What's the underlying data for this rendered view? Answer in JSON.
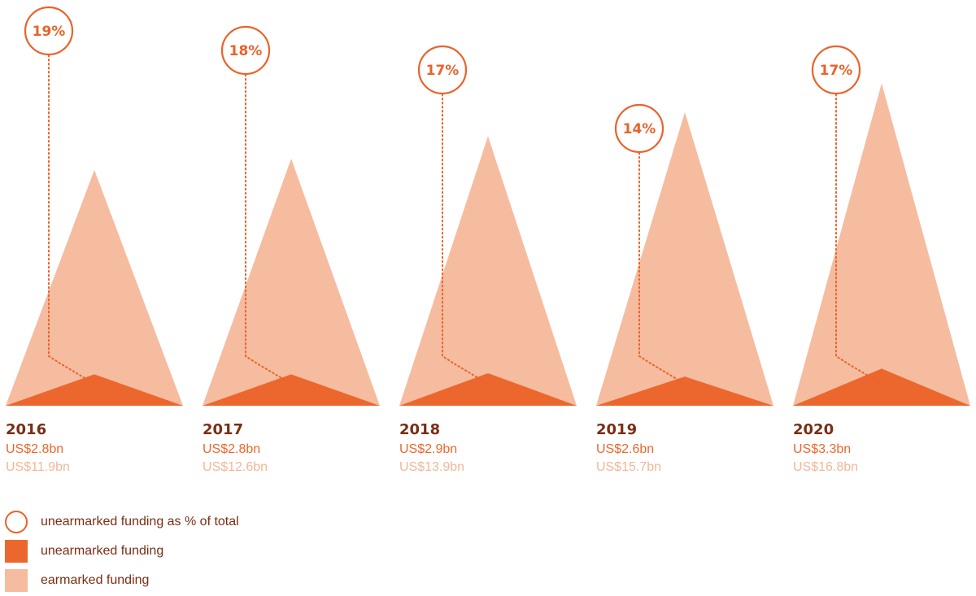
{
  "colors": {
    "earmarked": "#f6bc9f",
    "unearmarked": "#ec672d",
    "circle": "#e9632b",
    "year_text": "#7a2e14",
    "earmarked_text": "#f3b797"
  },
  "legend": [
    {
      "label": "unearmarked funding as % of total",
      "shape": "circle-outline"
    },
    {
      "label": "unearmarked funding",
      "shape": "square-dark"
    },
    {
      "label": "earmarked funding",
      "shape": "square-light"
    }
  ],
  "chart_data": {
    "type": "area",
    "units": "US$ billion",
    "categories": [
      "2016",
      "2017",
      "2018",
      "2019",
      "2020"
    ],
    "series": [
      {
        "name": "unearmarked funding",
        "values": [
          2.8,
          2.8,
          2.9,
          2.6,
          3.3
        ],
        "labels": [
          "US$2.8bn",
          "US$2.8bn",
          "US$2.9bn",
          "US$2.6bn",
          "US$3.3bn"
        ]
      },
      {
        "name": "earmarked funding",
        "values": [
          11.9,
          12.6,
          13.9,
          15.7,
          16.8
        ],
        "labels": [
          "US$11.9bn",
          "US$12.6bn",
          "US$13.9bn",
          "US$15.7bn",
          "US$16.8bn"
        ]
      }
    ],
    "percent_unearmarked": [
      19,
      18,
      17,
      14,
      17
    ],
    "percent_labels": [
      "19%",
      "18%",
      "17%",
      "14%",
      "17%"
    ]
  }
}
